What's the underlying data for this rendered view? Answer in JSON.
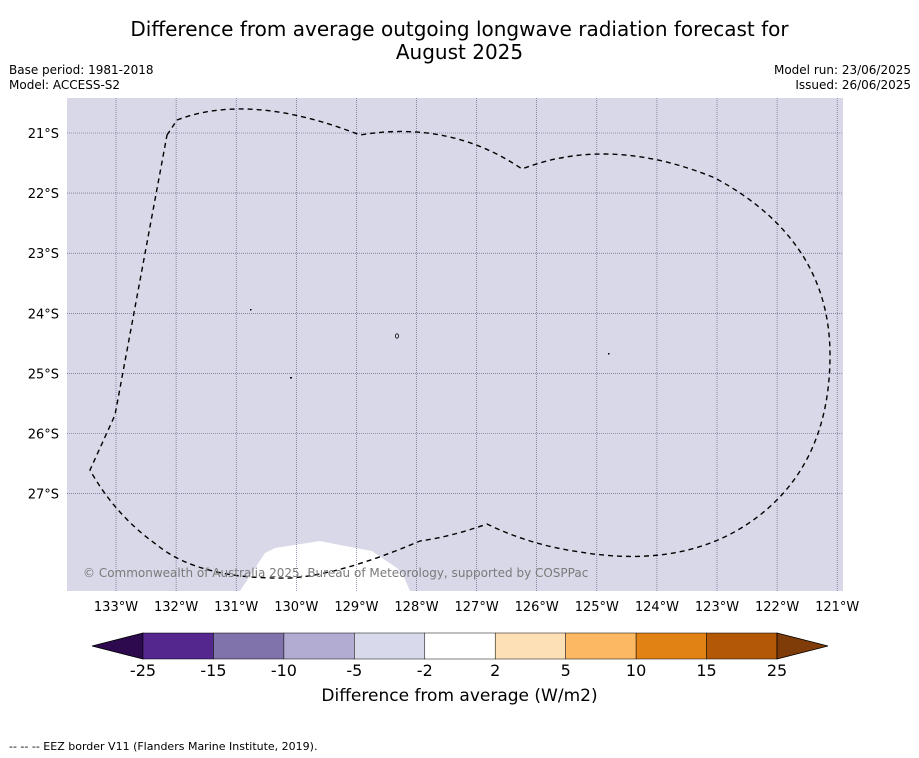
{
  "title": {
    "line1": "Difference from average outgoing longwave radiation forecast for",
    "line2": "August 2025"
  },
  "meta": {
    "base_period": "Base period: 1981-2018",
    "model": "Model: ACCESS-S2",
    "model_run": "Model run: 23/06/2025",
    "issued": "Issued: 26/06/2025"
  },
  "map": {
    "lat_labels": [
      "21°S",
      "22°S",
      "23°S",
      "24°S",
      "25°S",
      "26°S",
      "27°S"
    ],
    "lon_labels": [
      "133°W",
      "132°W",
      "131°W",
      "130°W",
      "129°W",
      "128°W",
      "127°W",
      "126°W",
      "125°W",
      "124°W",
      "123°W",
      "122°W",
      "121°W"
    ],
    "fill_color": "#d8d8e8",
    "land_color": "#ffffff",
    "copyright": "© Commonwealth of Australia 2025, Bureau of Meteorology, supported by COSPPac"
  },
  "colorbar": {
    "title": "Difference from average (W/m2)",
    "ticks": [
      "-25",
      "-15",
      "-10",
      "-5",
      "-2",
      "2",
      "5",
      "10",
      "15",
      "25"
    ],
    "colors": [
      "#2d0a4e",
      "#54278f",
      "#8073ac",
      "#b2abd2",
      "#d8daeb",
      "#ffffff",
      "#fee0b6",
      "#fdb863",
      "#e08214",
      "#b35806",
      "#7f3b08"
    ]
  },
  "footer": {
    "legend": "--  --  -- EEZ border V11 (Flanders Marine Institute, 2019)."
  }
}
